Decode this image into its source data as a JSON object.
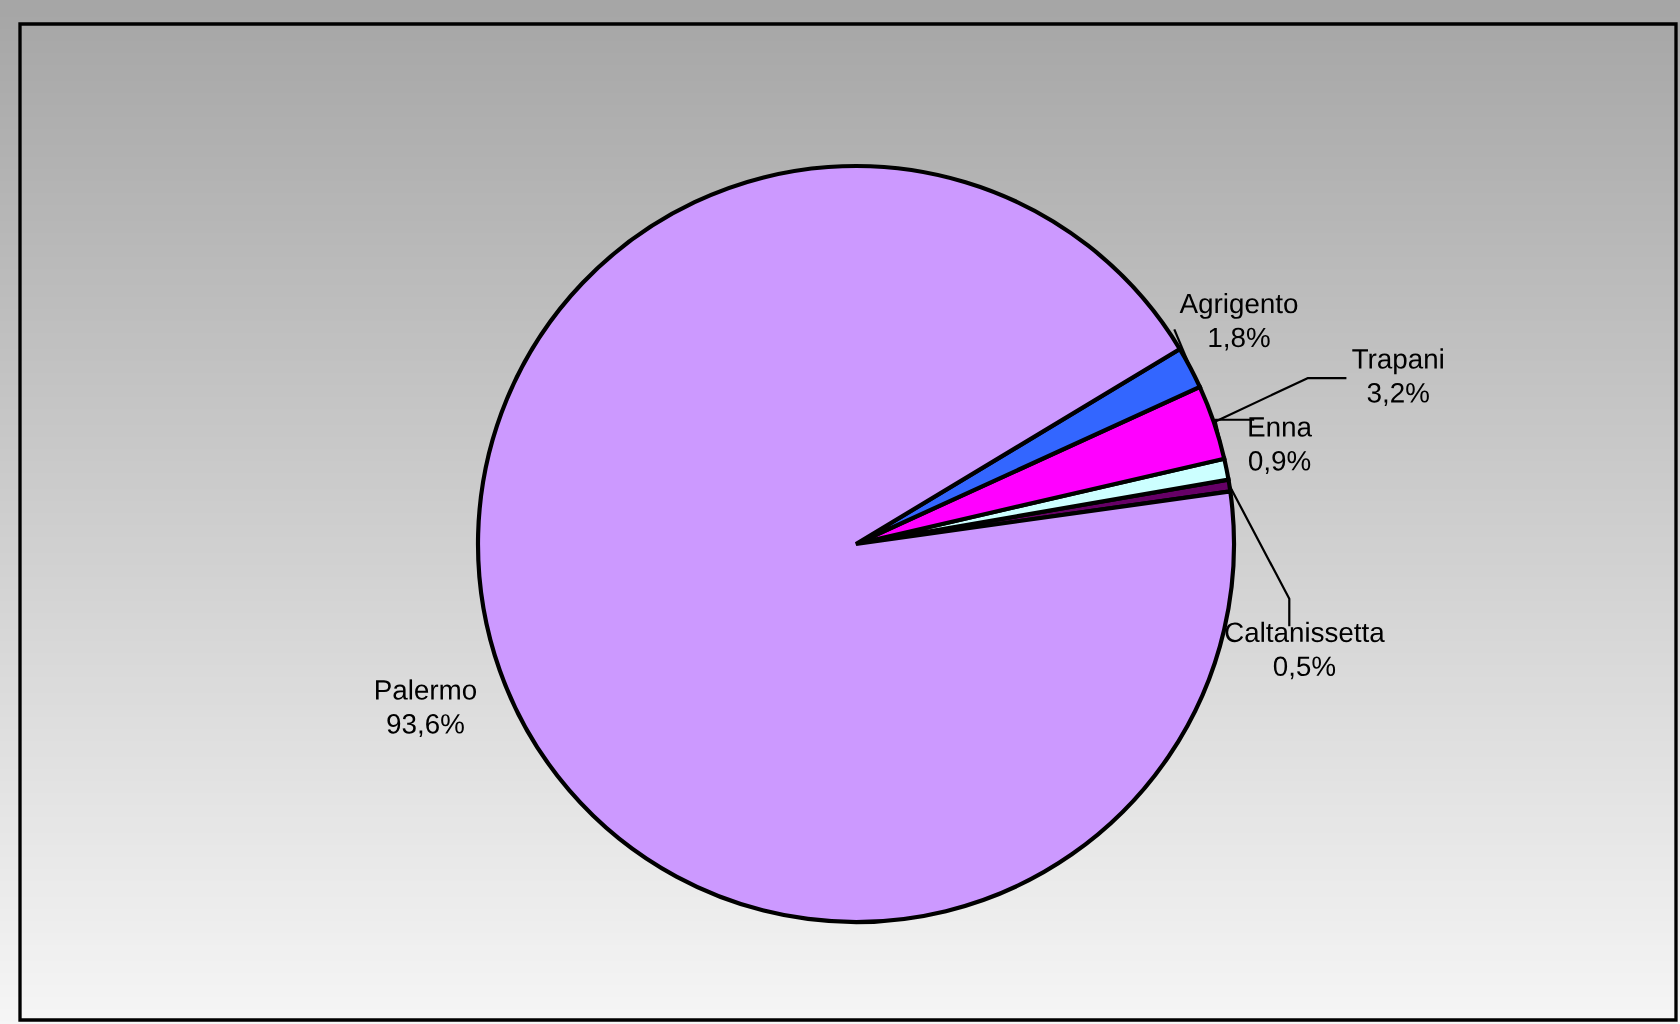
{
  "chart_data": {
    "type": "pie",
    "categories": [
      "Caltanissetta",
      "Enna",
      "Trapani",
      "Agrigento",
      "Palermo"
    ],
    "values": [
      0.5,
      0.9,
      3.2,
      1.8,
      93.6
    ],
    "colors": [
      "#660066",
      "#ccffff",
      "#ff00ff",
      "#3366ff",
      "#cc99ff"
    ],
    "value_labels": [
      "0,5%",
      "0,9%",
      "3,2%",
      "1,8%",
      "93,6%"
    ]
  }
}
